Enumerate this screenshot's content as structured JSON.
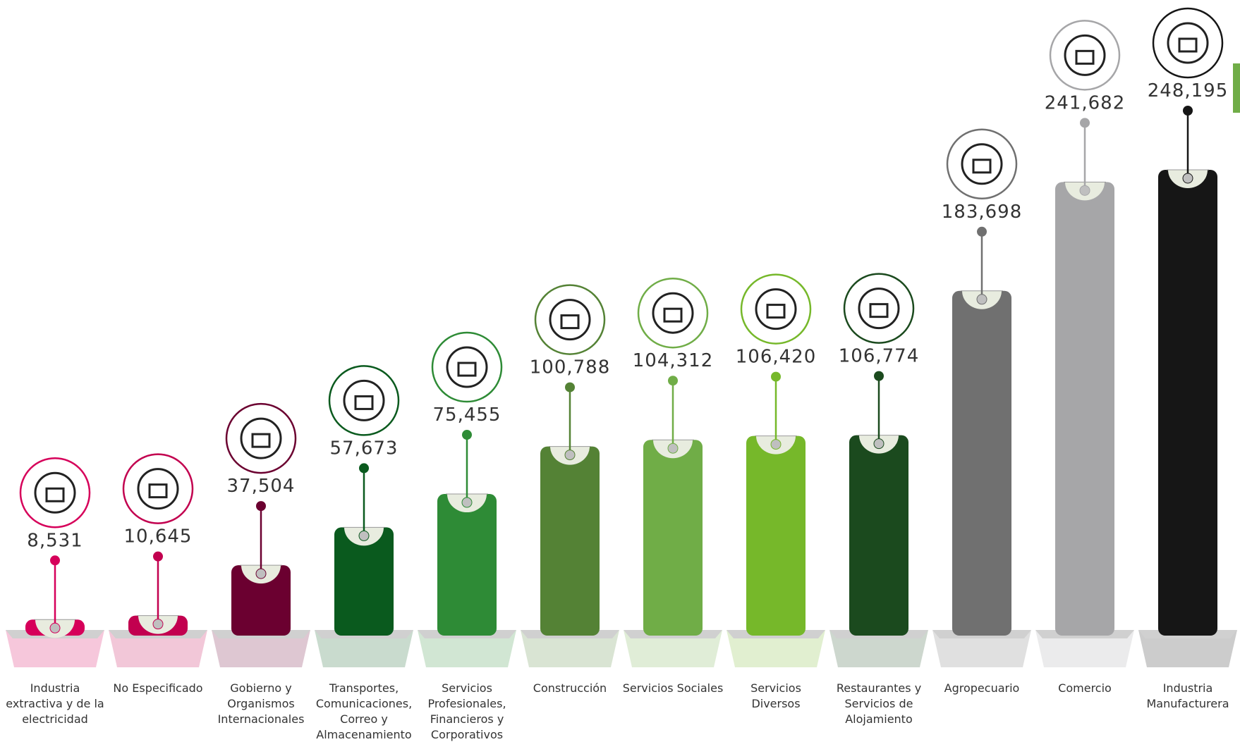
{
  "chart_data": {
    "type": "bar",
    "categories": [
      "Industria extractiva y de la electricidad",
      "No Especificado",
      "Gobierno y Organismos Internacionales",
      "Transportes, Comunicaciones, Correo y Almacenamiento",
      "Servicios Profesionales, Financieros y Corporativos",
      "Construcción",
      "Servicios Sociales",
      "Servicios Diversos",
      "Restaurantes y Servicios de Alojamiento",
      "Agropecuario",
      "Comercio",
      "Industria Manufacturera"
    ],
    "values": [
      8531,
      10645,
      37504,
      57673,
      75455,
      100788,
      104312,
      106420,
      106774,
      183698,
      241682,
      248195
    ],
    "value_labels": [
      "8,531",
      "10,645",
      "37,504",
      "57,673",
      "75,455",
      "100,788",
      "104,312",
      "106,420",
      "106,774",
      "183,698",
      "241,682",
      "248,195"
    ],
    "colors": [
      "#d6005a",
      "#c2004f",
      "#6b0030",
      "#0a5a1e",
      "#2e8b36",
      "#548235",
      "#70ad47",
      "#76b82a",
      "#1b4a1e",
      "#707070",
      "#a6a6a8",
      "#161616"
    ]
  }
}
